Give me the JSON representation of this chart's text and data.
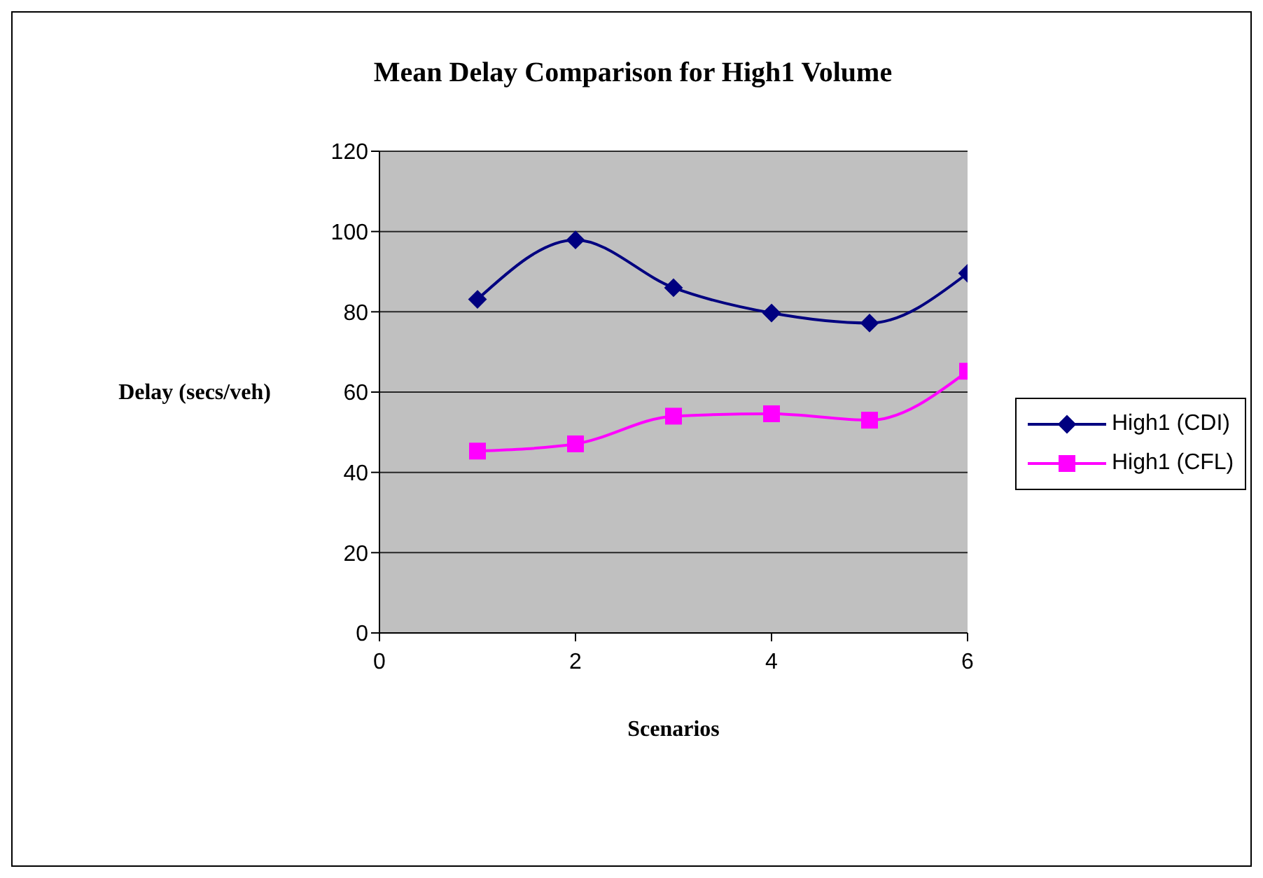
{
  "chart_data": {
    "type": "line",
    "title": "Mean Delay Comparison for High1 Volume",
    "xlabel": "Scenarios",
    "ylabel": "Delay (secs/veh)",
    "x": [
      1,
      2,
      3,
      4,
      5,
      6
    ],
    "series": [
      {
        "name": "High1 (CDI)",
        "color": "#000080",
        "marker": "diamond",
        "values": [
          83.1,
          97.9,
          86.0,
          79.7,
          77.2,
          89.6
        ]
      },
      {
        "name": "High1 (CFL)",
        "color": "#ff00ff",
        "marker": "square",
        "values": [
          45.3,
          47.1,
          54.0,
          54.6,
          53.0,
          65.2
        ]
      }
    ],
    "xlim": [
      0,
      6
    ],
    "xticks": [
      0,
      2,
      4,
      6
    ],
    "ylim": [
      0,
      120
    ],
    "yticks": [
      0,
      20,
      40,
      60,
      80,
      100,
      120
    ],
    "grid": "y",
    "legend": "right",
    "line_style": "solid"
  }
}
